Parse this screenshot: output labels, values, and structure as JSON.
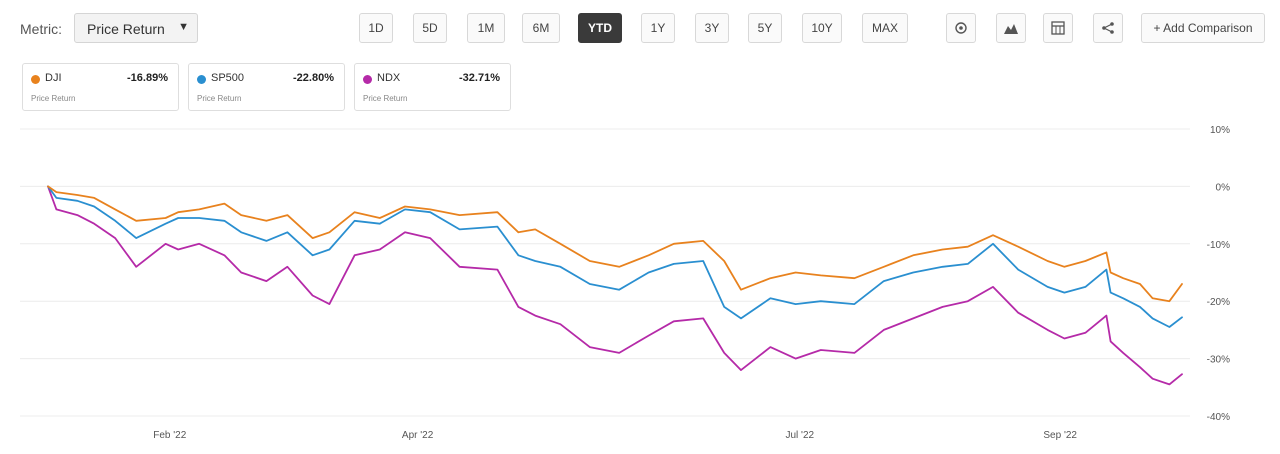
{
  "toolbar": {
    "metric_label": "Metric:",
    "metric_value": "Price Return",
    "ranges": [
      "1D",
      "5D",
      "1M",
      "6M",
      "YTD",
      "1Y",
      "3Y",
      "5Y",
      "10Y",
      "MAX"
    ],
    "active_range": "YTD",
    "add_comparison": "+ Add Comparison"
  },
  "legend": [
    {
      "symbol": "DJI",
      "value": "-16.89%",
      "label": "Price Return",
      "color": "#e8821e"
    },
    {
      "symbol": "SP500",
      "value": "-22.80%",
      "label": "Price Return",
      "color": "#2a8fd0"
    },
    {
      "symbol": "NDX",
      "value": "-32.71%",
      "label": "Price Return",
      "color": "#b52aa8"
    }
  ],
  "chart_data": {
    "type": "line",
    "x_range": [
      "2022-01-03",
      "2022-09-30"
    ],
    "x_ticks": [
      {
        "date": "2022-02-01",
        "label": "Feb '22"
      },
      {
        "date": "2022-04-01",
        "label": "Apr '22"
      },
      {
        "date": "2022-07-01",
        "label": "Jul '22"
      },
      {
        "date": "2022-09-01",
        "label": "Sep '22"
      }
    ],
    "y_ticks": [
      10,
      0,
      -10,
      -20,
      -30,
      -40
    ],
    "y_tick_labels": [
      "10%",
      "0%",
      "-10%",
      "-20%",
      "-30%",
      "-40%"
    ],
    "ylim": [
      -40,
      10
    ],
    "grid": true,
    "series": [
      {
        "name": "DJI",
        "color": "#e8821e",
        "points": [
          [
            "2022-01-03",
            0
          ],
          [
            "2022-01-05",
            -1
          ],
          [
            "2022-01-10",
            -1.5
          ],
          [
            "2022-01-14",
            -2
          ],
          [
            "2022-01-19",
            -4
          ],
          [
            "2022-01-24",
            -6
          ],
          [
            "2022-01-31",
            -5.5
          ],
          [
            "2022-02-03",
            -4.5
          ],
          [
            "2022-02-08",
            -4
          ],
          [
            "2022-02-14",
            -3
          ],
          [
            "2022-02-18",
            -5
          ],
          [
            "2022-02-24",
            -6
          ],
          [
            "2022-03-01",
            -5
          ],
          [
            "2022-03-07",
            -9
          ],
          [
            "2022-03-11",
            -8
          ],
          [
            "2022-03-17",
            -4.5
          ],
          [
            "2022-03-23",
            -5.5
          ],
          [
            "2022-03-29",
            -3.5
          ],
          [
            "2022-04-04",
            -4
          ],
          [
            "2022-04-11",
            -5
          ],
          [
            "2022-04-20",
            -4.5
          ],
          [
            "2022-04-25",
            -8
          ],
          [
            "2022-04-29",
            -7.5
          ],
          [
            "2022-05-05",
            -10
          ],
          [
            "2022-05-12",
            -13
          ],
          [
            "2022-05-19",
            -14
          ],
          [
            "2022-05-26",
            -12
          ],
          [
            "2022-06-01",
            -10
          ],
          [
            "2022-06-08",
            -9.5
          ],
          [
            "2022-06-13",
            -13
          ],
          [
            "2022-06-17",
            -18
          ],
          [
            "2022-06-24",
            -16
          ],
          [
            "2022-06-30",
            -15
          ],
          [
            "2022-07-06",
            -15.5
          ],
          [
            "2022-07-14",
            -16
          ],
          [
            "2022-07-21",
            -14
          ],
          [
            "2022-07-28",
            -12
          ],
          [
            "2022-08-04",
            -11
          ],
          [
            "2022-08-10",
            -10.5
          ],
          [
            "2022-08-16",
            -8.5
          ],
          [
            "2022-08-22",
            -10.5
          ],
          [
            "2022-08-29",
            -13
          ],
          [
            "2022-09-02",
            -14
          ],
          [
            "2022-09-07",
            -13
          ],
          [
            "2022-09-12",
            -11.5
          ],
          [
            "2022-09-13",
            -15
          ],
          [
            "2022-09-16",
            -16
          ],
          [
            "2022-09-20",
            -17
          ],
          [
            "2022-09-23",
            -19.5
          ],
          [
            "2022-09-27",
            -20
          ],
          [
            "2022-09-30",
            -17
          ]
        ]
      },
      {
        "name": "SP500",
        "color": "#2a8fd0",
        "points": [
          [
            "2022-01-03",
            0
          ],
          [
            "2022-01-05",
            -2
          ],
          [
            "2022-01-10",
            -2.5
          ],
          [
            "2022-01-14",
            -3.5
          ],
          [
            "2022-01-19",
            -6
          ],
          [
            "2022-01-24",
            -9
          ],
          [
            "2022-01-31",
            -6.5
          ],
          [
            "2022-02-03",
            -5.5
          ],
          [
            "2022-02-08",
            -5.5
          ],
          [
            "2022-02-14",
            -6
          ],
          [
            "2022-02-18",
            -8
          ],
          [
            "2022-02-24",
            -9.5
          ],
          [
            "2022-03-01",
            -8
          ],
          [
            "2022-03-07",
            -12
          ],
          [
            "2022-03-11",
            -11
          ],
          [
            "2022-03-17",
            -6
          ],
          [
            "2022-03-23",
            -6.5
          ],
          [
            "2022-03-29",
            -4
          ],
          [
            "2022-04-04",
            -4.5
          ],
          [
            "2022-04-11",
            -7.5
          ],
          [
            "2022-04-20",
            -7
          ],
          [
            "2022-04-25",
            -12
          ],
          [
            "2022-04-29",
            -13
          ],
          [
            "2022-05-05",
            -14
          ],
          [
            "2022-05-12",
            -17
          ],
          [
            "2022-05-19",
            -18
          ],
          [
            "2022-05-26",
            -15
          ],
          [
            "2022-06-01",
            -13.5
          ],
          [
            "2022-06-08",
            -13
          ],
          [
            "2022-06-13",
            -21
          ],
          [
            "2022-06-17",
            -23
          ],
          [
            "2022-06-24",
            -19.5
          ],
          [
            "2022-06-30",
            -20.5
          ],
          [
            "2022-07-06",
            -20
          ],
          [
            "2022-07-14",
            -20.5
          ],
          [
            "2022-07-21",
            -16.5
          ],
          [
            "2022-07-28",
            -15
          ],
          [
            "2022-08-04",
            -14
          ],
          [
            "2022-08-10",
            -13.5
          ],
          [
            "2022-08-16",
            -10
          ],
          [
            "2022-08-22",
            -14.5
          ],
          [
            "2022-08-29",
            -17.5
          ],
          [
            "2022-09-02",
            -18.5
          ],
          [
            "2022-09-07",
            -17.5
          ],
          [
            "2022-09-12",
            -14.5
          ],
          [
            "2022-09-13",
            -18.5
          ],
          [
            "2022-09-16",
            -19.5
          ],
          [
            "2022-09-20",
            -21
          ],
          [
            "2022-09-23",
            -23
          ],
          [
            "2022-09-27",
            -24.5
          ],
          [
            "2022-09-30",
            -22.8
          ]
        ]
      },
      {
        "name": "NDX",
        "color": "#b52aa8",
        "points": [
          [
            "2022-01-03",
            0
          ],
          [
            "2022-01-05",
            -4
          ],
          [
            "2022-01-10",
            -5
          ],
          [
            "2022-01-14",
            -6.5
          ],
          [
            "2022-01-19",
            -9
          ],
          [
            "2022-01-24",
            -14
          ],
          [
            "2022-01-31",
            -10
          ],
          [
            "2022-02-03",
            -11
          ],
          [
            "2022-02-08",
            -10
          ],
          [
            "2022-02-14",
            -12
          ],
          [
            "2022-02-18",
            -15
          ],
          [
            "2022-02-24",
            -16.5
          ],
          [
            "2022-03-01",
            -14
          ],
          [
            "2022-03-07",
            -19
          ],
          [
            "2022-03-11",
            -20.5
          ],
          [
            "2022-03-17",
            -12
          ],
          [
            "2022-03-23",
            -11
          ],
          [
            "2022-03-29",
            -8
          ],
          [
            "2022-04-04",
            -9
          ],
          [
            "2022-04-11",
            -14
          ],
          [
            "2022-04-20",
            -14.5
          ],
          [
            "2022-04-25",
            -21
          ],
          [
            "2022-04-29",
            -22.5
          ],
          [
            "2022-05-05",
            -24
          ],
          [
            "2022-05-12",
            -28
          ],
          [
            "2022-05-19",
            -29
          ],
          [
            "2022-05-26",
            -26
          ],
          [
            "2022-06-01",
            -23.5
          ],
          [
            "2022-06-08",
            -23
          ],
          [
            "2022-06-13",
            -29
          ],
          [
            "2022-06-17",
            -32
          ],
          [
            "2022-06-24",
            -28
          ],
          [
            "2022-06-30",
            -30
          ],
          [
            "2022-07-06",
            -28.5
          ],
          [
            "2022-07-14",
            -29
          ],
          [
            "2022-07-21",
            -25
          ],
          [
            "2022-07-28",
            -23
          ],
          [
            "2022-08-04",
            -21
          ],
          [
            "2022-08-10",
            -20
          ],
          [
            "2022-08-16",
            -17.5
          ],
          [
            "2022-08-22",
            -22
          ],
          [
            "2022-08-29",
            -25
          ],
          [
            "2022-09-02",
            -26.5
          ],
          [
            "2022-09-07",
            -25.5
          ],
          [
            "2022-09-12",
            -22.5
          ],
          [
            "2022-09-13",
            -27
          ],
          [
            "2022-09-16",
            -29
          ],
          [
            "2022-09-20",
            -31.5
          ],
          [
            "2022-09-23",
            -33.5
          ],
          [
            "2022-09-27",
            -34.5
          ],
          [
            "2022-09-30",
            -32.71
          ]
        ]
      }
    ]
  }
}
